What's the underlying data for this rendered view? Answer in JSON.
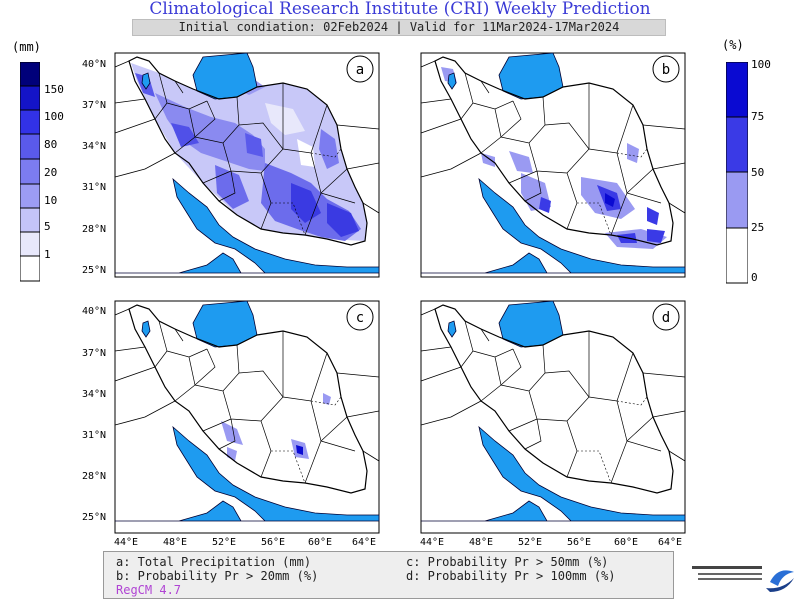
{
  "header": {
    "title": "Climatological Research Institute (CRI) Weekly Prediction",
    "subtitle": "Initial condiation: 02Feb2024 | Valid for 11Mar2024-17Mar2024"
  },
  "colorbar_left": {
    "unit": "(mm)",
    "labels": [
      "150",
      "100",
      "80",
      "20",
      "10",
      "5",
      "1"
    ],
    "colors": [
      "#00007a",
      "#1414c8",
      "#3232e6",
      "#5a5aeb",
      "#7c7cf0",
      "#9c9cf4",
      "#c4c4f8",
      "#e8e8fb",
      "#ffffff"
    ]
  },
  "colorbar_right": {
    "unit": "(%)",
    "labels": [
      "100",
      "75",
      "50",
      "25",
      "0"
    ],
    "colors": [
      "#0a0ad2",
      "#3a3ae6",
      "#9a9af2",
      "#ffffff"
    ]
  },
  "panels": {
    "a": {
      "letter": "a"
    },
    "b": {
      "letter": "b"
    },
    "c": {
      "letter": "c"
    },
    "d": {
      "letter": "d"
    }
  },
  "axes": {
    "lat_labels": [
      "40°N",
      "37°N",
      "34°N",
      "31°N",
      "28°N",
      "25°N"
    ],
    "lon_labels": [
      "44°E",
      "48°E",
      "52°E",
      "56°E",
      "60°E",
      "64°E"
    ]
  },
  "legend": {
    "a": "a: Total Precipitation (mm)",
    "b": "b: Probability Pr > 20mm (%)",
    "c": "c: Probability Pr > 50mm (%)",
    "d": "d: Probability Pr > 100mm (%)",
    "model": "RegCM 4.7"
  },
  "colors": {
    "title": "#3b3bd6",
    "sea": "#1e9bf0",
    "border": "#000000",
    "model_label": "#b044d4"
  }
}
